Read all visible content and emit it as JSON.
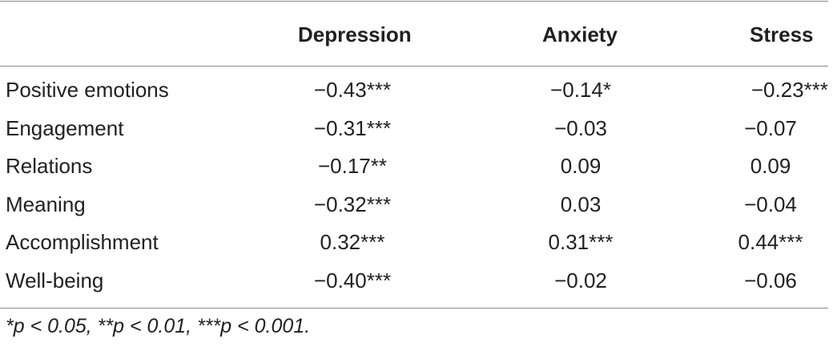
{
  "table": {
    "columns": [
      "Depression",
      "Anxiety",
      "Stress"
    ],
    "rows": [
      {
        "label": "Positive emotions",
        "values": [
          "−0.43***",
          "−0.14*",
          "−0.23***"
        ]
      },
      {
        "label": "Engagement",
        "values": [
          "−0.31***",
          "−0.03",
          "−0.07"
        ]
      },
      {
        "label": "Relations",
        "values": [
          "−0.17**",
          "0.09",
          "0.09"
        ]
      },
      {
        "label": "Meaning",
        "values": [
          "−0.32***",
          "0.03",
          "−0.04"
        ]
      },
      {
        "label": "Accomplishment",
        "values": [
          "0.32***",
          "0.31***",
          "0.44***"
        ]
      },
      {
        "label": "Well-being",
        "values": [
          "−0.40***",
          "−0.02",
          "−0.06"
        ]
      }
    ],
    "footnote": "*p < 0.05, **p < 0.01, ***p < 0.001."
  }
}
